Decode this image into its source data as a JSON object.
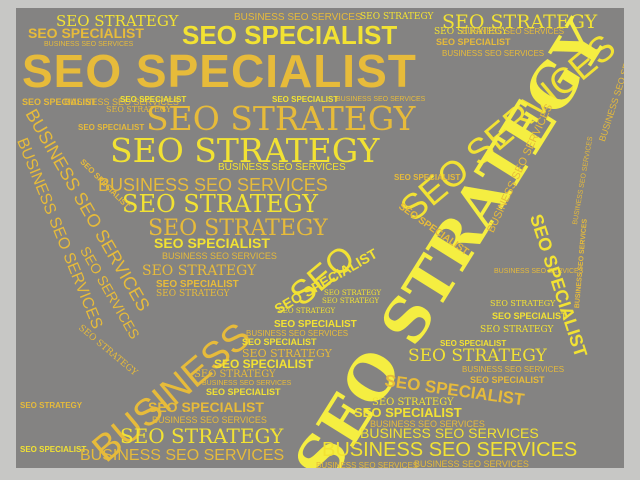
{
  "phrases": {
    "seo_strategy": "SEO STRATEGY",
    "seo_specialist": "SEO SPECIALIST",
    "business_seo_services": "BUSINESS SEO SERVICES",
    "seo_services": "SEO SERVICES",
    "business": "BUSINESS",
    "seo": "SEO",
    "strategy": "STRATEGY"
  },
  "colors": {
    "canvas_gray": "#848382",
    "frame_gray": "#c7c7c5",
    "yellow": "#f2e233",
    "gold": "#e7bb3a"
  }
}
